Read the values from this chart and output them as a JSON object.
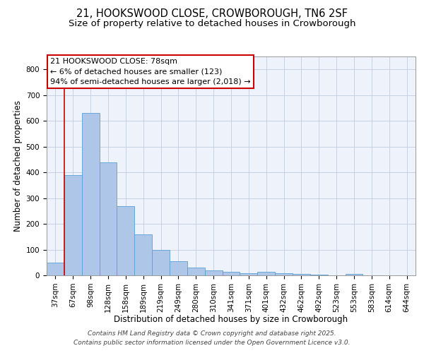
{
  "title1": "21, HOOKSWOOD CLOSE, CROWBOROUGH, TN6 2SF",
  "title2": "Size of property relative to detached houses in Crowborough",
  "xlabel": "Distribution of detached houses by size in Crowborough",
  "ylabel": "Number of detached properties",
  "categories": [
    "37sqm",
    "67sqm",
    "98sqm",
    "128sqm",
    "158sqm",
    "189sqm",
    "219sqm",
    "249sqm",
    "280sqm",
    "310sqm",
    "341sqm",
    "371sqm",
    "401sqm",
    "432sqm",
    "462sqm",
    "492sqm",
    "523sqm",
    "553sqm",
    "583sqm",
    "614sqm",
    "644sqm"
  ],
  "values": [
    48,
    390,
    632,
    440,
    270,
    158,
    100,
    55,
    30,
    18,
    15,
    7,
    14,
    7,
    5,
    2,
    0,
    5,
    0,
    0,
    0
  ],
  "bar_color": "#aec6e8",
  "bar_edge_color": "#5a9fd4",
  "vline_color": "#cc0000",
  "annotation_lines": [
    "21 HOOKSWOOD CLOSE: 78sqm",
    "← 6% of detached houses are smaller (123)",
    "94% of semi-detached houses are larger (2,018) →"
  ],
  "annotation_box_color": "#cc0000",
  "footnote1": "Contains HM Land Registry data © Crown copyright and database right 2025.",
  "footnote2": "Contains public sector information licensed under the Open Government Licence v3.0.",
  "bg_color": "#eef2fa",
  "ylim": [
    0,
    850
  ],
  "yticks": [
    0,
    100,
    200,
    300,
    400,
    500,
    600,
    700,
    800
  ],
  "title_fontsize": 10.5,
  "subtitle_fontsize": 9.5,
  "axis_fontsize": 8.5,
  "tick_fontsize": 7.5,
  "annotation_fontsize": 8,
  "footnote_fontsize": 6.5
}
